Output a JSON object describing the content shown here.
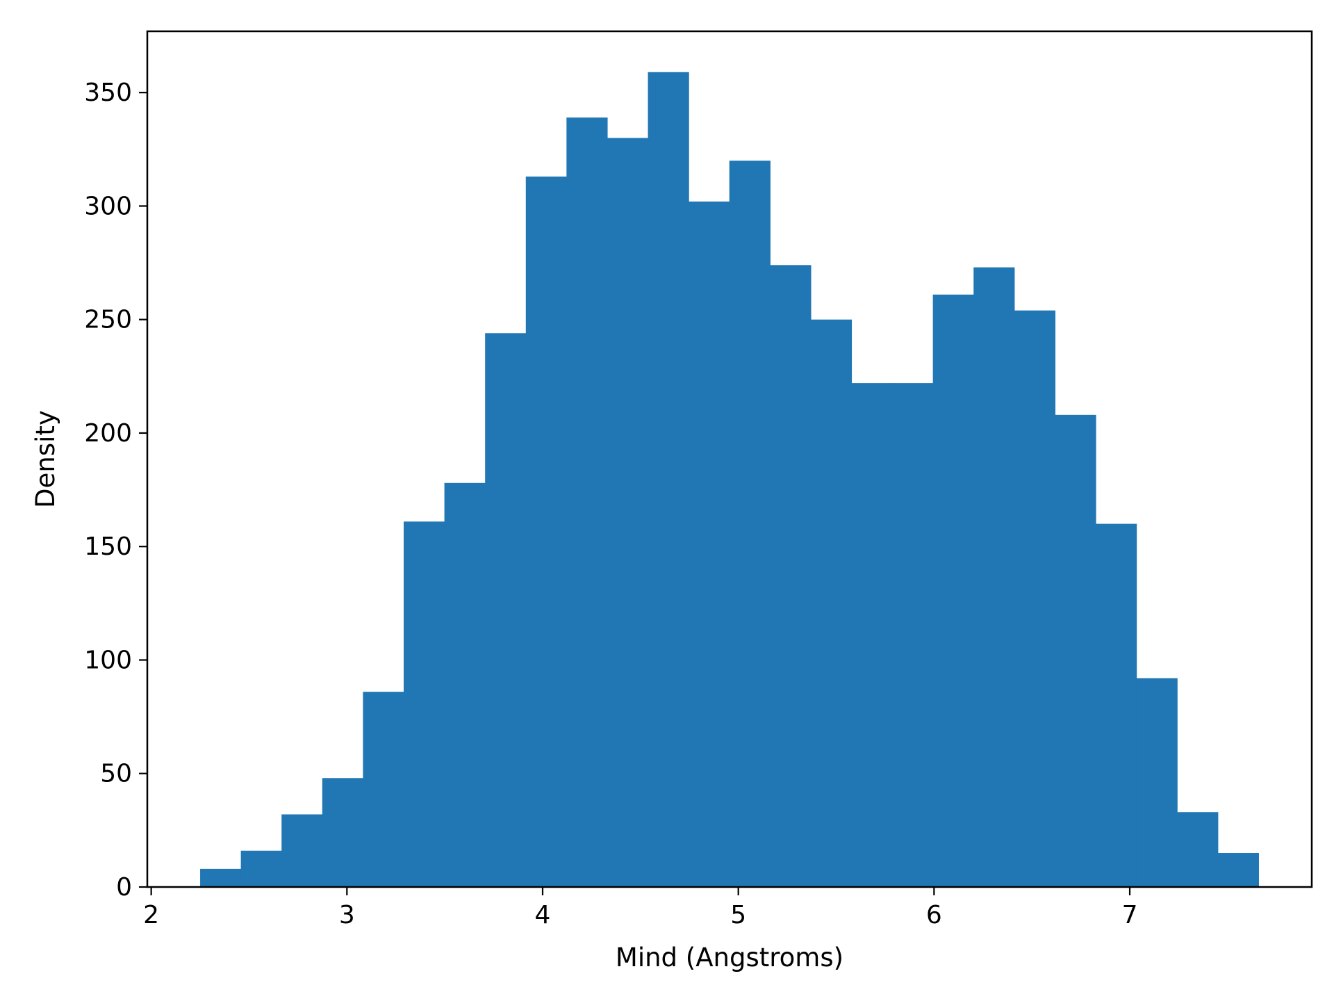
{
  "chart_data": {
    "type": "bar",
    "title": "",
    "xlabel": "Mind (Angstroms)",
    "ylabel": "Density",
    "xlim": [
      1.98,
      7.93
    ],
    "ylim": [
      0,
      377
    ],
    "xticks": [
      2,
      3,
      4,
      5,
      6,
      7
    ],
    "yticks": [
      0,
      50,
      100,
      150,
      200,
      250,
      300,
      350
    ],
    "bin_edges": [
      2.25,
      2.458,
      2.666,
      2.874,
      3.082,
      3.29,
      3.498,
      3.706,
      3.914,
      4.122,
      4.33,
      4.538,
      4.746,
      4.954,
      5.162,
      5.37,
      5.578,
      5.786,
      5.994,
      6.202,
      6.41,
      6.618,
      6.826,
      7.034,
      7.242,
      7.45,
      7.658
    ],
    "values": [
      8,
      16,
      32,
      48,
      86,
      161,
      178,
      244,
      313,
      339,
      330,
      359,
      302,
      320,
      274,
      250,
      222,
      222,
      261,
      273,
      254,
      208,
      160,
      92,
      33,
      15
    ],
    "bar_color": "#2077b4",
    "grid": false,
    "legend": false
  }
}
